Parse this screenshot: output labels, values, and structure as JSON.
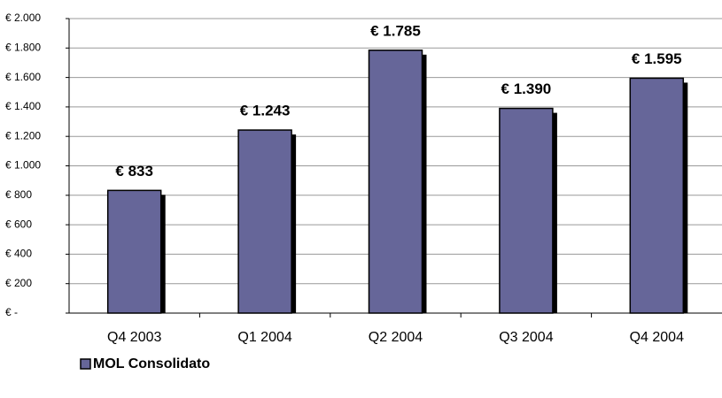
{
  "chart_data": {
    "type": "bar",
    "categories": [
      "Q4 2003",
      "Q1 2004",
      "Q2 2004",
      "Q3 2004",
      "Q4 2004"
    ],
    "series": [
      {
        "name": "MOL Consolidato",
        "color": "#666699",
        "values": [
          833,
          1243,
          1785,
          1390,
          1595
        ],
        "value_labels": [
          "€ 833",
          "€ 1.243",
          "€ 1.785",
          "€ 1.390",
          "€ 1.595"
        ]
      }
    ],
    "ylim": [
      0,
      2000
    ],
    "yticks": [
      {
        "value": 0,
        "label": "€ -"
      },
      {
        "value": 200,
        "label": "€ 200"
      },
      {
        "value": 400,
        "label": "€ 400"
      },
      {
        "value": 600,
        "label": "€ 600"
      },
      {
        "value": 800,
        "label": "€ 800"
      },
      {
        "value": 1000,
        "label": "€ 1.000"
      },
      {
        "value": 1200,
        "label": "€ 1.200"
      },
      {
        "value": 1400,
        "label": "€ 1.400"
      },
      {
        "value": 1600,
        "label": "€ 1.600"
      },
      {
        "value": 1800,
        "label": "€ 1.800"
      },
      {
        "value": 2000,
        "label": "€ 2.000"
      }
    ],
    "grid": true,
    "legend": "bottom-left"
  }
}
